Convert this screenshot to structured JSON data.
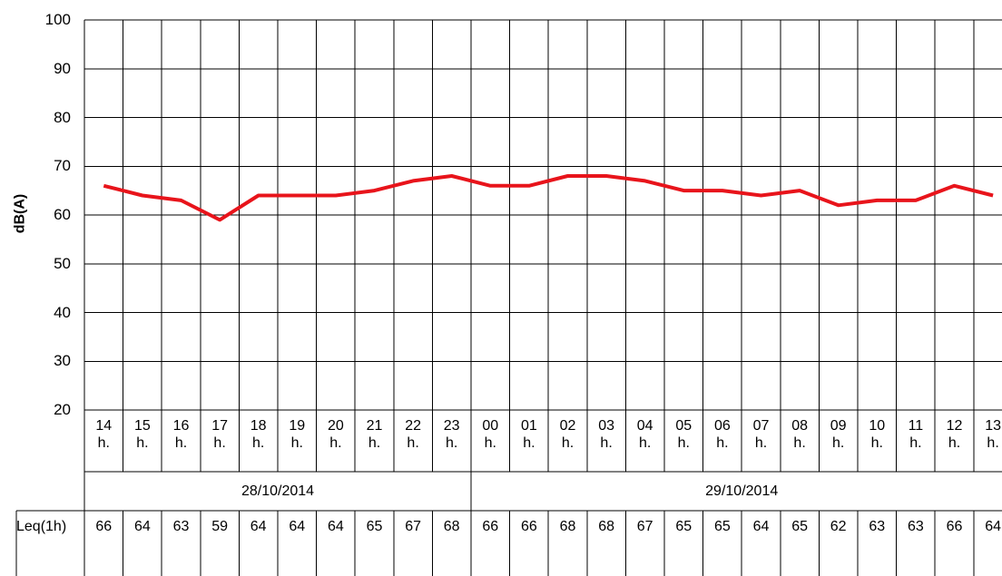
{
  "chart_data": {
    "type": "line",
    "y_label": "dB(A)",
    "categories": [
      "14 h.",
      "15 h.",
      "16 h.",
      "17 h.",
      "18 h.",
      "19 h.",
      "20 h.",
      "21 h.",
      "22 h.",
      "23 h.",
      "00 h.",
      "01 h.",
      "02 h.",
      "03 h.",
      "04 h.",
      "05 h.",
      "06 h.",
      "07 h.",
      "08 h.",
      "09 h.",
      "10 h.",
      "11 h.",
      "12 h.",
      "13 h."
    ],
    "series": [
      {
        "name": "Leq(1h)",
        "color": "#e8141b",
        "values": [
          66,
          64,
          63,
          59,
          64,
          64,
          64,
          65,
          67,
          68,
          66,
          66,
          68,
          68,
          67,
          65,
          65,
          64,
          65,
          62,
          63,
          63,
          66,
          64
        ]
      }
    ],
    "date_groups": [
      {
        "label": "28/10/2014",
        "span": 10
      },
      {
        "label": "29/10/2014",
        "span": 14
      }
    ],
    "ylim": [
      20,
      100
    ],
    "yticks": [
      20,
      30,
      40,
      50,
      60,
      70,
      80,
      90,
      100
    ],
    "grid": true
  }
}
